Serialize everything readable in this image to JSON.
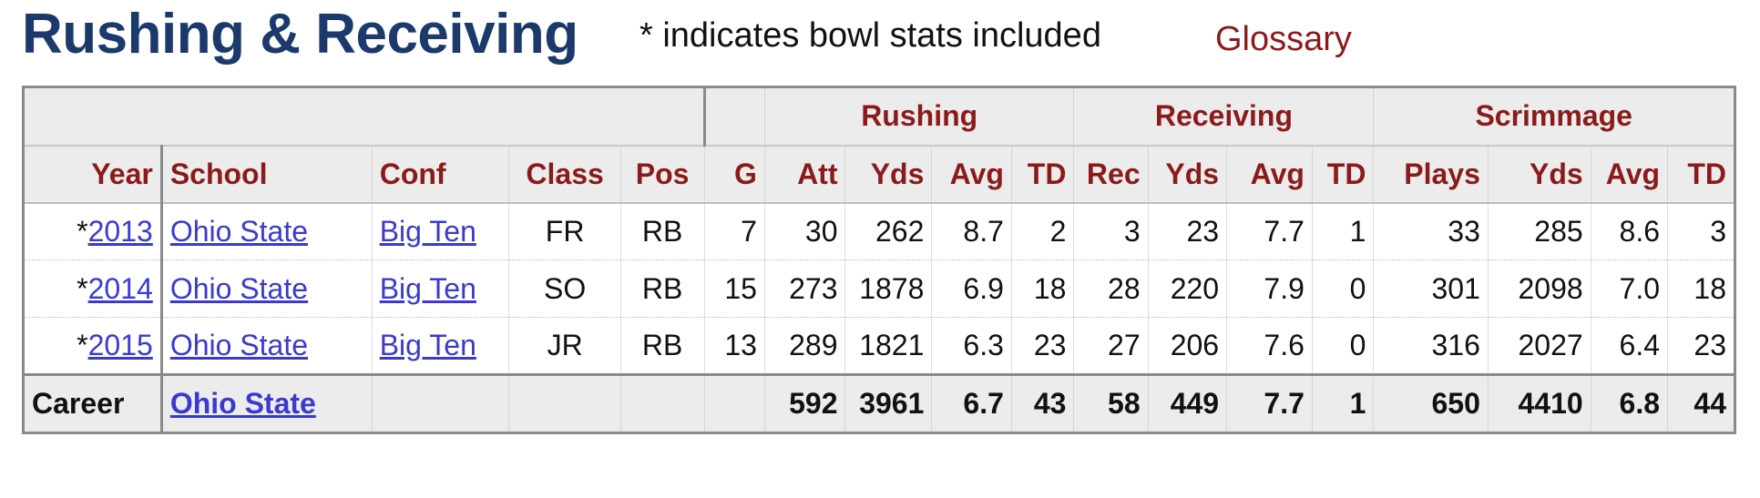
{
  "header": {
    "title": "Rushing & Receiving",
    "note": "* indicates bowl stats included",
    "glossary_link": "Glossary"
  },
  "colors": {
    "title": "#1b3a6b",
    "header_text": "#8b1b1b",
    "link": "#3a3ad0"
  },
  "table": {
    "groups": {
      "rushing": "Rushing",
      "receiving": "Receiving",
      "scrimmage": "Scrimmage"
    },
    "columns": {
      "year": "Year",
      "school": "School",
      "conf": "Conf",
      "class": "Class",
      "pos": "Pos",
      "g": "G",
      "rush_att": "Att",
      "rush_yds": "Yds",
      "rush_avg": "Avg",
      "rush_td": "TD",
      "rec": "Rec",
      "rec_yds": "Yds",
      "rec_avg": "Avg",
      "rec_td": "TD",
      "plays": "Plays",
      "scrim_yds": "Yds",
      "scrim_avg": "Avg",
      "scrim_td": "TD"
    },
    "rows": [
      {
        "year_prefix": "*",
        "year": "2013",
        "school": "Ohio State",
        "conf": "Big Ten",
        "class": "FR",
        "pos": "RB",
        "g": "7",
        "rush_att": "30",
        "rush_yds": "262",
        "rush_avg": "8.7",
        "rush_td": "2",
        "rec": "3",
        "rec_yds": "23",
        "rec_avg": "7.7",
        "rec_td": "1",
        "plays": "33",
        "scrim_yds": "285",
        "scrim_avg": "8.6",
        "scrim_td": "3"
      },
      {
        "year_prefix": "*",
        "year": "2014",
        "school": "Ohio State",
        "conf": "Big Ten",
        "class": "SO",
        "pos": "RB",
        "g": "15",
        "rush_att": "273",
        "rush_yds": "1878",
        "rush_avg": "6.9",
        "rush_td": "18",
        "rec": "28",
        "rec_yds": "220",
        "rec_avg": "7.9",
        "rec_td": "0",
        "plays": "301",
        "scrim_yds": "2098",
        "scrim_avg": "7.0",
        "scrim_td": "18"
      },
      {
        "year_prefix": "*",
        "year": "2015",
        "school": "Ohio State",
        "conf": "Big Ten",
        "class": "JR",
        "pos": "RB",
        "g": "13",
        "rush_att": "289",
        "rush_yds": "1821",
        "rush_avg": "6.3",
        "rush_td": "23",
        "rec": "27",
        "rec_yds": "206",
        "rec_avg": "7.6",
        "rec_td": "0",
        "plays": "316",
        "scrim_yds": "2027",
        "scrim_avg": "6.4",
        "scrim_td": "23"
      }
    ],
    "career": {
      "label": "Career",
      "school": "Ohio State",
      "rush_att": "592",
      "rush_yds": "3961",
      "rush_avg": "6.7",
      "rush_td": "43",
      "rec": "58",
      "rec_yds": "449",
      "rec_avg": "7.7",
      "rec_td": "1",
      "plays": "650",
      "scrim_yds": "4410",
      "scrim_avg": "6.8",
      "scrim_td": "44"
    }
  }
}
